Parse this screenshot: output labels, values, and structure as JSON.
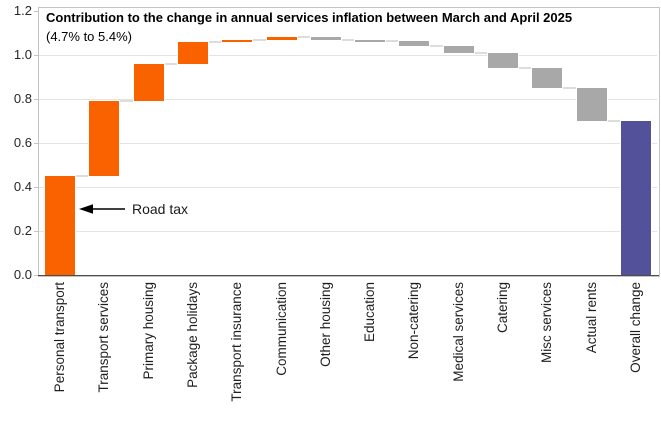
{
  "title": "Contribution to the change in annual services inflation between March and April 2025",
  "subtitle": "(4.7% to 5.4%)",
  "annotation": {
    "text": "Road tax",
    "target": "Personal transport"
  },
  "colors": {
    "increase": "#fa6200",
    "decrease": "#a8a8a8",
    "total": "#54519b",
    "connector": "#dddddd",
    "grid": "#e3e3e3",
    "frame": "#c4c4c4",
    "axis": "#4d4d4d"
  },
  "chart_data": {
    "type": "bar",
    "subtype": "waterfall",
    "title": "Contribution to the change in annual services inflation between March and April 2025",
    "subtitle": "(4.7% to 5.4%)",
    "xlabel": "",
    "ylabel": "",
    "ylim": [
      0.0,
      1.2
    ],
    "yticks": [
      "0.0",
      "0.2",
      "0.4",
      "0.6",
      "0.8",
      "1.0",
      "1.2"
    ],
    "grid": true,
    "legend": false,
    "categories": [
      "Personal transport",
      "Transport services",
      "Primary housing",
      "Package holidays",
      "Transport insurance",
      "Communication",
      "Other housing",
      "Education",
      "Non-catering",
      "Medical services",
      "Catering",
      "Misc services",
      "Actual rents",
      "Overall change"
    ],
    "bars": [
      {
        "label": "Personal transport",
        "value": 0.45,
        "start": 0.0,
        "end": 0.45,
        "role": "increase"
      },
      {
        "label": "Transport services",
        "value": 0.34,
        "start": 0.45,
        "end": 0.79,
        "role": "increase"
      },
      {
        "label": "Primary housing",
        "value": 0.17,
        "start": 0.79,
        "end": 0.96,
        "role": "increase"
      },
      {
        "label": "Package holidays",
        "value": 0.1,
        "start": 0.96,
        "end": 1.06,
        "role": "increase"
      },
      {
        "label": "Transport insurance",
        "value": 0.01,
        "start": 1.06,
        "end": 1.07,
        "role": "increase"
      },
      {
        "label": "Communication",
        "value": 0.01,
        "start": 1.07,
        "end": 1.08,
        "role": "increase"
      },
      {
        "label": "Other housing",
        "value": -0.01,
        "start": 1.08,
        "end": 1.07,
        "role": "decrease"
      },
      {
        "label": "Education",
        "value": -0.005,
        "start": 1.07,
        "end": 1.065,
        "role": "decrease"
      },
      {
        "label": "Non-catering",
        "value": -0.025,
        "start": 1.065,
        "end": 1.04,
        "role": "decrease"
      },
      {
        "label": "Medical services",
        "value": -0.03,
        "start": 1.04,
        "end": 1.01,
        "role": "decrease"
      },
      {
        "label": "Catering",
        "value": -0.07,
        "start": 1.01,
        "end": 0.94,
        "role": "decrease"
      },
      {
        "label": "Misc services",
        "value": -0.09,
        "start": 0.94,
        "end": 0.85,
        "role": "decrease"
      },
      {
        "label": "Actual rents",
        "value": -0.15,
        "start": 0.85,
        "end": 0.7,
        "role": "decrease"
      },
      {
        "label": "Overall change",
        "value": 0.7,
        "start": 0.0,
        "end": 0.7,
        "role": "total"
      }
    ]
  }
}
